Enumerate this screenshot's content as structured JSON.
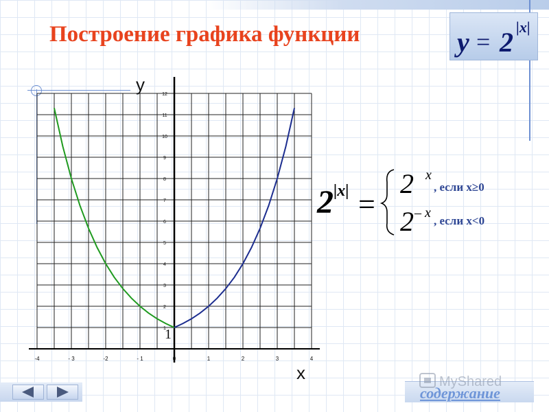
{
  "slide": {
    "title": "Построение графика функции",
    "formula_box": {
      "base": "y",
      "equals": "=",
      "power_base": "2",
      "exponent": "|x|"
    },
    "piecewise": {
      "lhs_base": "2",
      "lhs_exponent": "|x|",
      "equals": "=",
      "case1_base": "2",
      "case1_exponent": "x",
      "case1_condition": ", если x≥0",
      "case2_base": "2",
      "case2_exponent": "– x",
      "case2_condition": ", если x<0"
    },
    "contents_link": "содержание"
  },
  "colors": {
    "title": "#e8431e",
    "left_branch": "#1f9a1f",
    "right_branch": "#1c2d8f",
    "condition_text": "#2e4694",
    "contents_link": "#6e95d8"
  },
  "chart_data": {
    "type": "line",
    "xlabel": "x",
    "ylabel": "y",
    "xlim": [
      -4,
      4
    ],
    "ylim": [
      0,
      12
    ],
    "x_ticks": [
      "-4",
      "- 3",
      "-2",
      "- 1",
      "0",
      "1",
      "2",
      "3",
      "4"
    ],
    "y_ticks": [
      "1",
      "2",
      "3",
      "4",
      "5",
      "6",
      "7",
      "8",
      "9",
      "10",
      "11",
      "12"
    ],
    "origin_value_label": "1",
    "grid": true,
    "series": [
      {
        "x": [
          -3.5,
          -3.25,
          -3.0,
          -2.75,
          -2.5,
          -2.25,
          -2.0,
          -1.75,
          -1.5,
          -1.25,
          -1.0,
          -0.75,
          -0.5,
          -0.25,
          0.0
        ],
        "y": [
          11.31,
          9.51,
          8.0,
          6.73,
          5.66,
          4.76,
          4.0,
          3.36,
          2.83,
          2.38,
          2.0,
          1.68,
          1.41,
          1.19,
          1.0
        ],
        "color": "#1f9a1f"
      },
      {
        "x": [
          0.0,
          0.25,
          0.5,
          0.75,
          1.0,
          1.25,
          1.5,
          1.75,
          2.0,
          2.25,
          2.5,
          2.75,
          3.0,
          3.25,
          3.5
        ],
        "y": [
          1.0,
          1.19,
          1.41,
          1.68,
          2.0,
          2.38,
          2.83,
          3.36,
          4.0,
          4.76,
          5.66,
          6.73,
          8.0,
          9.51,
          11.31
        ],
        "color": "#1c2d8f"
      }
    ]
  },
  "navigation": {
    "prev_icon": "arrow-left-icon",
    "next_icon": "arrow-right-icon"
  }
}
